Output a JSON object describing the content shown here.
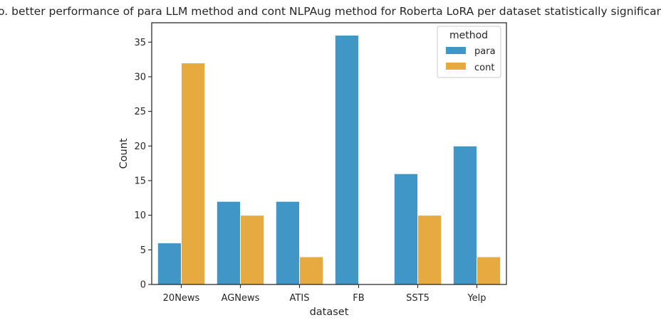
{
  "chart_data": {
    "type": "bar",
    "title": "No. better performance of para LLM method and cont NLPAug method for Roberta LoRA per dataset statistically significant.",
    "xlabel": "dataset",
    "ylabel": "Count",
    "categories": [
      "20News",
      "AGNews",
      "ATIS",
      "FB",
      "SST5",
      "Yelp"
    ],
    "series": [
      {
        "name": "para",
        "values": [
          6,
          12,
          12,
          36,
          16,
          20
        ],
        "color": "#4196c8"
      },
      {
        "name": "cont",
        "values": [
          32,
          10,
          4,
          0,
          10,
          4
        ],
        "color": "#e6aa41"
      }
    ],
    "ylim": [
      0,
      37.8
    ],
    "yticks": [
      0,
      5,
      10,
      15,
      20,
      25,
      30,
      35
    ],
    "grid": false,
    "legend": {
      "title": "method",
      "placement": "top-right"
    }
  }
}
